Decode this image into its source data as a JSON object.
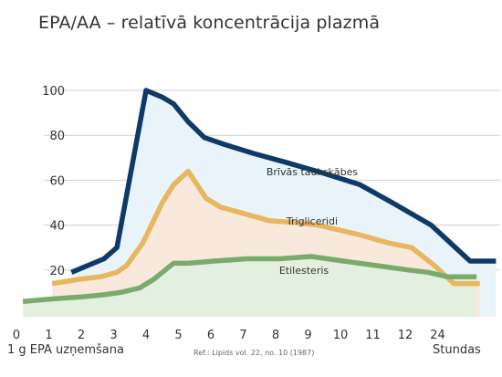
{
  "title": "EPA/AA – relatīvā koncentrācija plazmā",
  "chart_data": {
    "type": "area",
    "title": "EPA/AA – relatīvā koncentrācija plazmā",
    "xlabel": "Stundas",
    "ylabel": "",
    "x_ticks": [
      "0",
      "1",
      "2",
      "3",
      "4",
      "5",
      "6",
      "7",
      "8",
      "9",
      "10",
      "11",
      "12",
      "24"
    ],
    "y_ticks": [
      20,
      40,
      60,
      80,
      100
    ],
    "ylim": [
      0,
      108
    ],
    "grid": "horizontal",
    "series": [
      {
        "name": "Brīvās taukskābes",
        "color": "#0e3a66",
        "fill": "#e8f3fa",
        "x": [
          1.7,
          2.7,
          3.1,
          4.0,
          4.5,
          4.85,
          5.3,
          5.8,
          6.4,
          7.3,
          8.3,
          9.5,
          10.6,
          11.6,
          12.8,
          13.4,
          14.0,
          14.8
        ],
        "values": [
          19,
          25,
          30,
          100,
          97,
          94,
          86,
          79,
          76,
          72,
          68,
          63,
          58,
          50,
          40,
          32,
          24,
          24
        ]
      },
      {
        "name": "Trigliceridi",
        "color": "#e8b65f",
        "fill": "#f8e9dc",
        "x": [
          1.1,
          2.0,
          2.6,
          3.1,
          3.4,
          3.9,
          4.5,
          4.85,
          5.3,
          5.85,
          6.3,
          6.8,
          7.8,
          8.7,
          9.3,
          10.5,
          11.5,
          12.2,
          12.9,
          13.5,
          14.3
        ],
        "values": [
          14,
          16,
          17,
          19,
          22,
          32,
          50,
          58,
          64,
          52,
          48,
          46,
          42,
          41,
          40,
          36,
          32,
          30,
          22,
          14,
          14
        ]
      },
      {
        "name": "Etilesteris",
        "color": "#7aab6c",
        "fill": "#e4f0df",
        "x": [
          0.2,
          1.0,
          2.0,
          2.7,
          3.2,
          3.8,
          4.25,
          4.85,
          5.3,
          6.1,
          7.1,
          8.1,
          9.1,
          9.6,
          10.1,
          11.1,
          12.1,
          12.7,
          13.3,
          14.2
        ],
        "values": [
          6,
          7,
          8,
          9,
          10,
          12,
          16,
          23,
          23,
          24,
          25,
          25,
          26,
          25,
          24,
          22,
          20,
          19,
          17,
          17
        ]
      }
    ]
  },
  "footer": {
    "left": "1 g EPA uzņemšana",
    "reference": "Ref.: Lipids vol. 22, no. 10 (1987)",
    "right": "Stundas"
  }
}
